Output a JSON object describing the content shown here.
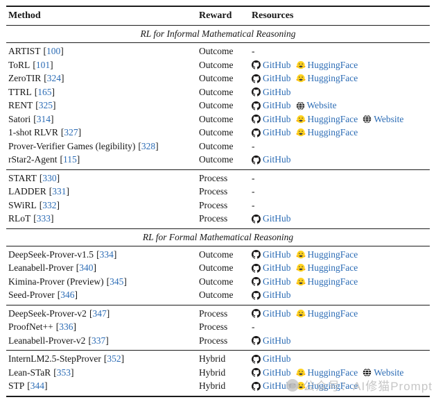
{
  "table": {
    "columns": [
      "Method",
      "Reward",
      "Resources"
    ],
    "dash": "-",
    "citation_brackets": [
      "[",
      "]"
    ],
    "sections": [
      {
        "title": "RL for Informal Mathematical Reasoning",
        "groups": [
          {
            "rows": [
              {
                "method": "ARTIST",
                "citation": "100",
                "reward": "Outcome",
                "resources": []
              },
              {
                "method": "ToRL",
                "citation": "101",
                "reward": "Outcome",
                "resources": [
                  {
                    "type": "github",
                    "label": "GitHub"
                  },
                  {
                    "type": "huggingface",
                    "label": "HuggingFace"
                  }
                ]
              },
              {
                "method": "ZeroTIR",
                "citation": "324",
                "reward": "Outcome",
                "resources": [
                  {
                    "type": "github",
                    "label": "GitHub"
                  },
                  {
                    "type": "huggingface",
                    "label": "HuggingFace"
                  }
                ]
              },
              {
                "method": "TTRL",
                "citation": "165",
                "reward": "Outcome",
                "resources": [
                  {
                    "type": "github",
                    "label": "GitHub"
                  }
                ]
              },
              {
                "method": "RENT",
                "citation": "325",
                "reward": "Outcome",
                "resources": [
                  {
                    "type": "github",
                    "label": "GitHub"
                  },
                  {
                    "type": "website",
                    "label": "Website"
                  }
                ]
              },
              {
                "method": "Satori",
                "citation": "314",
                "reward": "Outcome",
                "resources": [
                  {
                    "type": "github",
                    "label": "GitHub"
                  },
                  {
                    "type": "huggingface",
                    "label": "HuggingFace"
                  },
                  {
                    "type": "website",
                    "label": "Website"
                  }
                ]
              },
              {
                "method": "1-shot RLVR",
                "citation": "327",
                "reward": "Outcome",
                "resources": [
                  {
                    "type": "github",
                    "label": "GitHub"
                  },
                  {
                    "type": "huggingface",
                    "label": "HuggingFace"
                  }
                ]
              },
              {
                "method": "Prover-Verifier Games (legibility)",
                "citation": "328",
                "reward": "Outcome",
                "resources": []
              },
              {
                "method": "rStar2-Agent",
                "citation": "115",
                "reward": "Outcome",
                "resources": [
                  {
                    "type": "github",
                    "label": "GitHub"
                  }
                ]
              }
            ]
          },
          {
            "rows": [
              {
                "method": "START",
                "citation": "330",
                "reward": "Process",
                "resources": []
              },
              {
                "method": "LADDER",
                "citation": "331",
                "reward": "Process",
                "resources": []
              },
              {
                "method": "SWiRL",
                "citation": "332",
                "reward": "Process",
                "resources": []
              },
              {
                "method": "RLoT",
                "citation": "333",
                "reward": "Process",
                "resources": [
                  {
                    "type": "github",
                    "label": "GitHub"
                  }
                ]
              }
            ]
          }
        ]
      },
      {
        "title": "RL for Formal Mathematical Reasoning",
        "groups": [
          {
            "rows": [
              {
                "method": "DeepSeek-Prover-v1.5",
                "citation": "334",
                "reward": "Outcome",
                "resources": [
                  {
                    "type": "github",
                    "label": "GitHub"
                  },
                  {
                    "type": "huggingface",
                    "label": "HuggingFace"
                  }
                ]
              },
              {
                "method": "Leanabell-Prover",
                "citation": "340",
                "reward": "Outcome",
                "resources": [
                  {
                    "type": "github",
                    "label": "GitHub"
                  },
                  {
                    "type": "huggingface",
                    "label": "HuggingFace"
                  }
                ]
              },
              {
                "method": "Kimina-Prover (Preview)",
                "citation": "345",
                "reward": "Outcome",
                "resources": [
                  {
                    "type": "github",
                    "label": "GitHub"
                  },
                  {
                    "type": "huggingface",
                    "label": "HuggingFace"
                  }
                ]
              },
              {
                "method": "Seed-Prover",
                "citation": "346",
                "reward": "Outcome",
                "resources": [
                  {
                    "type": "github",
                    "label": "GitHub"
                  }
                ]
              }
            ]
          },
          {
            "rows": [
              {
                "method": "DeepSeek-Prover-v2",
                "citation": "347",
                "reward": "Process",
                "resources": [
                  {
                    "type": "github",
                    "label": "GitHub"
                  },
                  {
                    "type": "huggingface",
                    "label": "HuggingFace"
                  }
                ]
              },
              {
                "method": "ProofNet++",
                "citation": "336",
                "reward": "Process",
                "resources": []
              },
              {
                "method": "Leanabell-Prover-v2",
                "citation": "337",
                "reward": "Process",
                "resources": [
                  {
                    "type": "github",
                    "label": "GitHub"
                  }
                ]
              }
            ]
          },
          {
            "rows": [
              {
                "method": "InternLM2.5-StepProver",
                "citation": "352",
                "reward": "Hybrid",
                "resources": [
                  {
                    "type": "github",
                    "label": "GitHub"
                  }
                ]
              },
              {
                "method": "Lean-STaR",
                "citation": "353",
                "reward": "Hybrid",
                "resources": [
                  {
                    "type": "github",
                    "label": "GitHub"
                  },
                  {
                    "type": "huggingface",
                    "label": "HuggingFace"
                  },
                  {
                    "type": "website",
                    "label": "Website"
                  }
                ]
              },
              {
                "method": "STP",
                "citation": "344",
                "reward": "Hybrid",
                "resources": [
                  {
                    "type": "github",
                    "label": "GitHub"
                  },
                  {
                    "type": "huggingface",
                    "label": "HuggingFace"
                  }
                ]
              }
            ]
          }
        ]
      }
    ]
  },
  "watermark": {
    "text": "公众号：AI修猫Prompt"
  },
  "colors": {
    "link_blue": "#2c6cb5",
    "citation_blue": "#2c6cb5",
    "text_black": "#151515",
    "rule_black": "#1b1b1b",
    "background": "#ffffff",
    "watermark_gray": "#bdbdbd",
    "huggingface_yellow": "#ffd21e",
    "github_black": "#171515"
  }
}
